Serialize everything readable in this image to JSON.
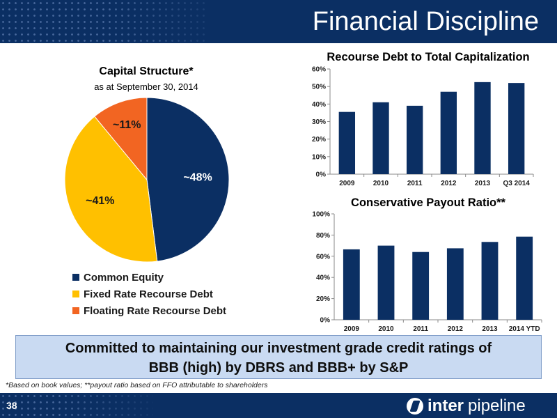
{
  "header": {
    "title": "Financial Discipline"
  },
  "chart_data": [
    {
      "type": "pie",
      "title": "Capital Structure*",
      "subtitle": "as at September 30, 2014",
      "slices": [
        {
          "name": "Common Equity",
          "value": 48,
          "label": "~48%",
          "color": "#0b2f63"
        },
        {
          "name": "Fixed Rate Recourse Debt",
          "value": 41,
          "label": "~41%",
          "color": "#ffc000"
        },
        {
          "name": "Floating Rate Recourse Debt",
          "value": 11,
          "label": "~11%",
          "color": "#f26522"
        }
      ],
      "legend": "bottom"
    },
    {
      "type": "bar",
      "title": "Recourse Debt to Total Capitalization",
      "categories": [
        "2009",
        "2010",
        "2011",
        "2012",
        "2013",
        "Q3 2014"
      ],
      "values": [
        35.5,
        41,
        39,
        47,
        52.5,
        52
      ],
      "yticks": [
        "0%",
        "10%",
        "20%",
        "30%",
        "40%",
        "50%",
        "60%"
      ],
      "ylim": [
        0,
        60
      ],
      "color": "#0b2f63"
    },
    {
      "type": "bar",
      "title": "Conservative Payout Ratio**",
      "categories": [
        "2009",
        "2010",
        "2011",
        "2012",
        "2013",
        "2014 YTD"
      ],
      "values": [
        66.5,
        70,
        64,
        67.5,
        73.5,
        78.5
      ],
      "yticks": [
        "0%",
        "20%",
        "40%",
        "60%",
        "80%",
        "100%"
      ],
      "ylim": [
        0,
        100
      ],
      "color": "#0b2f63"
    }
  ],
  "callout": {
    "line1": "Committed to maintaining our investment grade credit ratings of",
    "line2": "BBB (high) by DBRS and BBB+ by S&P"
  },
  "footnote": "*Based on book values; **payout ratio based on FFO attributable to shareholders",
  "footer": {
    "page_number": "38",
    "logo_bold": "inter",
    "logo_light": "pipeline"
  }
}
